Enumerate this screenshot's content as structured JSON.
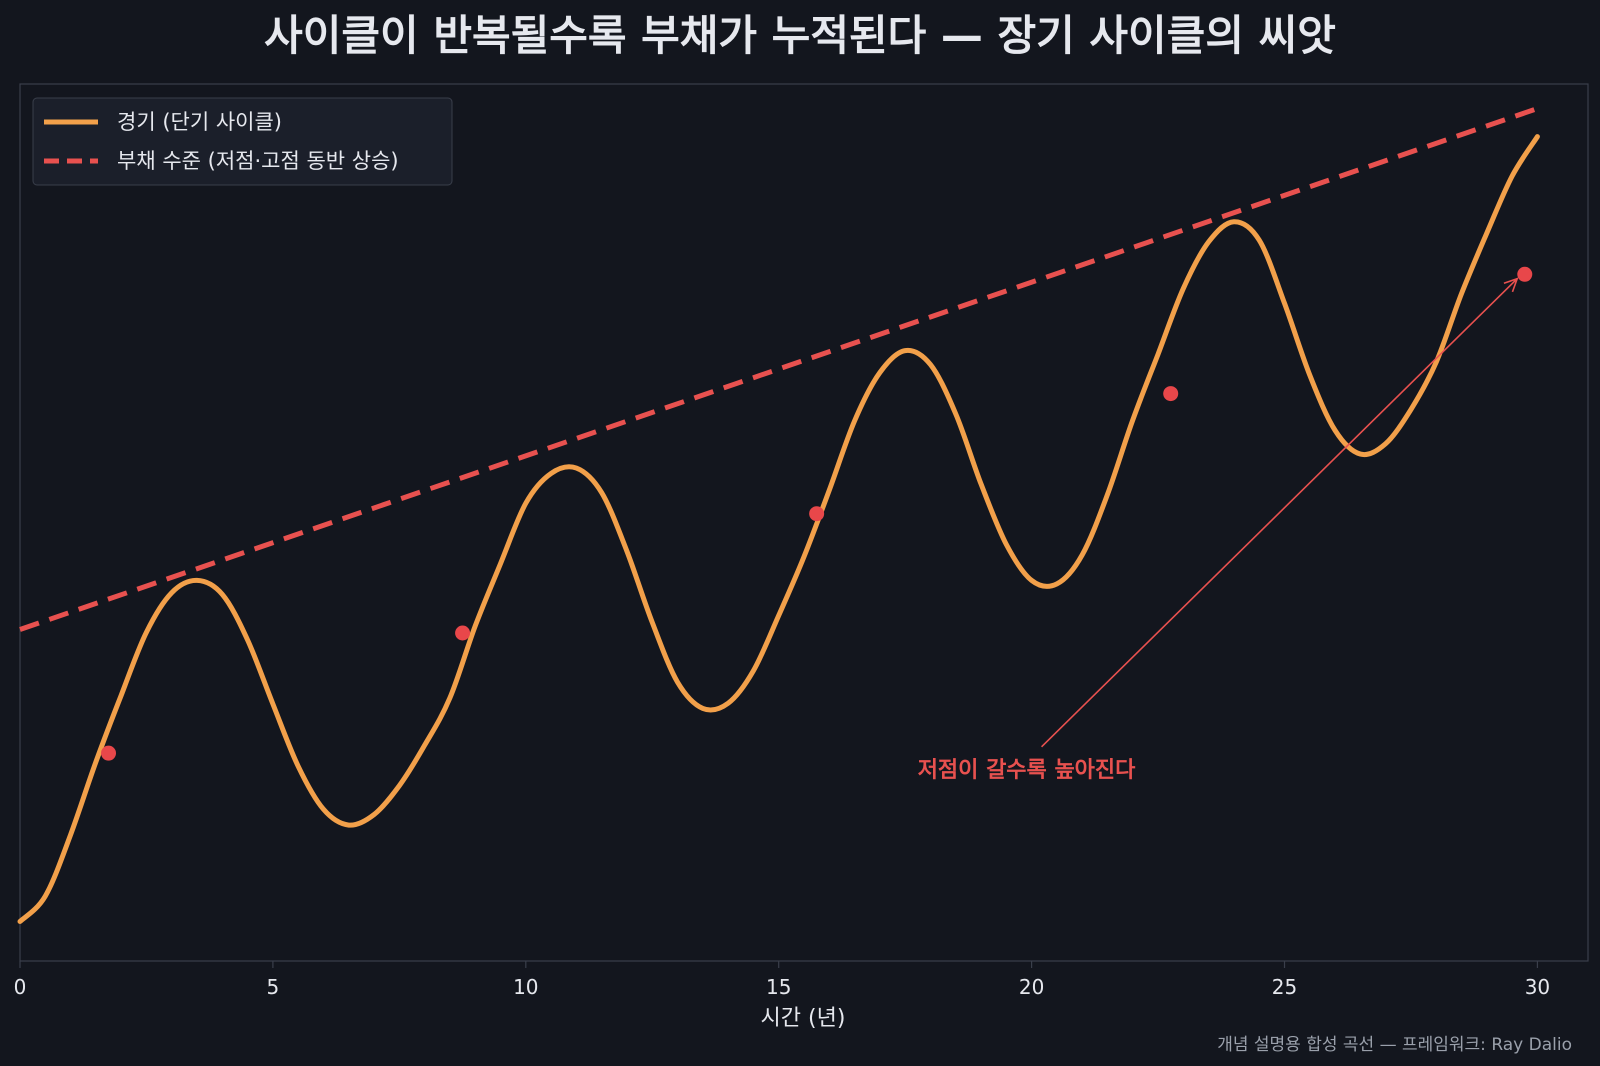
{
  "chart_data": {
    "type": "line",
    "title": "사이클이 반복될수록 부채가 누적된다 — 장기 사이클의 씨앗",
    "xlabel": "시간 (년)",
    "ylabel": "",
    "xlim": [
      0,
      31
    ],
    "ylim": [
      0,
      1
    ],
    "x_ticks": [
      0,
      5,
      10,
      15,
      20,
      25,
      30
    ],
    "grid": false,
    "legend_position": "top-left",
    "series": [
      {
        "name": "경기 (단기 사이클)",
        "color": "#f2a04a",
        "style": "solid",
        "x": [
          0,
          0.5,
          1.0,
          1.5,
          2.0,
          2.5,
          3.0,
          3.5,
          4.0,
          4.5,
          5.0,
          5.5,
          6.0,
          6.5,
          7.0,
          7.5,
          8.0,
          8.5,
          9.0,
          9.5,
          10.0,
          10.5,
          11.0,
          11.5,
          12.0,
          12.5,
          13.0,
          13.5,
          14.0,
          14.5,
          15.0,
          15.5,
          16.0,
          16.5,
          17.0,
          17.5,
          18.0,
          18.5,
          19.0,
          19.5,
          20.0,
          20.5,
          21.0,
          21.5,
          22.0,
          22.5,
          23.0,
          23.5,
          24.0,
          24.5,
          25.0,
          25.5,
          26.0,
          26.5,
          27.0,
          27.5,
          28.0,
          28.5,
          29.0,
          29.5,
          30.0
        ],
        "values": [
          0.045,
          0.074,
          0.144,
          0.227,
          0.303,
          0.375,
          0.42,
          0.434,
          0.418,
          0.366,
          0.293,
          0.222,
          0.173,
          0.155,
          0.167,
          0.2,
          0.246,
          0.3,
          0.382,
          0.453,
          0.522,
          0.556,
          0.562,
          0.534,
          0.467,
          0.386,
          0.318,
          0.288,
          0.294,
          0.331,
          0.394,
          0.461,
          0.537,
          0.616,
          0.671,
          0.696,
          0.68,
          0.624,
          0.544,
          0.475,
          0.434,
          0.43,
          0.463,
          0.532,
          0.617,
          0.692,
          0.767,
          0.82,
          0.843,
          0.822,
          0.75,
          0.668,
          0.605,
          0.578,
          0.59,
          0.629,
          0.683,
          0.761,
          0.83,
          0.895,
          0.94
        ]
      },
      {
        "name": "부채 수준 (저점·고점 동반 상승)",
        "color": "#e8514f",
        "style": "dashed",
        "x": [
          0,
          30
        ],
        "values": [
          0.378,
          0.972
        ]
      }
    ],
    "markers": {
      "color": "#e8474a",
      "x": [
        1.75,
        8.75,
        15.75,
        22.75,
        29.75
      ],
      "values": [
        0.237,
        0.374,
        0.51,
        0.647,
        0.783
      ]
    },
    "annotation": {
      "text": "저점이 갈수록 높아진다",
      "color": "#e8514f",
      "text_x": 19.9,
      "text_y": 0.21,
      "arrow_to_x": 29.6,
      "arrow_to_y": 0.778
    },
    "footnote": "개념 설명용 합성 곡선 — 프레임워크: Ray Dalio",
    "colors": {
      "background": "#13161e",
      "axes": "#3a3f4b",
      "text": "#e6e8ee",
      "muted_text": "#9aa0ab",
      "legend_bg": "#1b1f2a",
      "legend_border": "#3a3f4b"
    }
  }
}
